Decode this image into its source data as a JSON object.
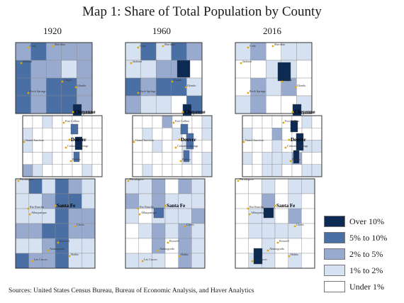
{
  "title": "Map 1: Share of Total Population by County",
  "columns": [
    "1920",
    "1960",
    "2016"
  ],
  "legend": [
    {
      "label": "Over 10%",
      "color": "#0d2a52"
    },
    {
      "label": "5% to 10%",
      "color": "#4a6fa5"
    },
    {
      "label": "2% to 5%",
      "color": "#98abcf"
    },
    {
      "label": "1% to 2%",
      "color": "#d6e1f2"
    },
    {
      "label": "Under 1%",
      "color": "#ffffff"
    }
  ],
  "source": "Sources: United States Census Bureau, Bureau of Economic Analysis, and Haver Analytics",
  "cities_bold": [
    "Cheyenne",
    "Denver",
    "Santa Fe"
  ],
  "cities_small": [
    "Cody",
    "Sheridan",
    "Jackson",
    "Casper",
    "Glendo",
    "Rock Springs",
    "Fort Collins",
    "Grand Junction",
    "Colorado Springs",
    "Pueblo",
    "Farmington",
    "Rio Rancho",
    "Albuquerque",
    "Clovis",
    "Roswell",
    "Hobbs",
    "Alamogordo",
    "Las Cruces"
  ]
}
